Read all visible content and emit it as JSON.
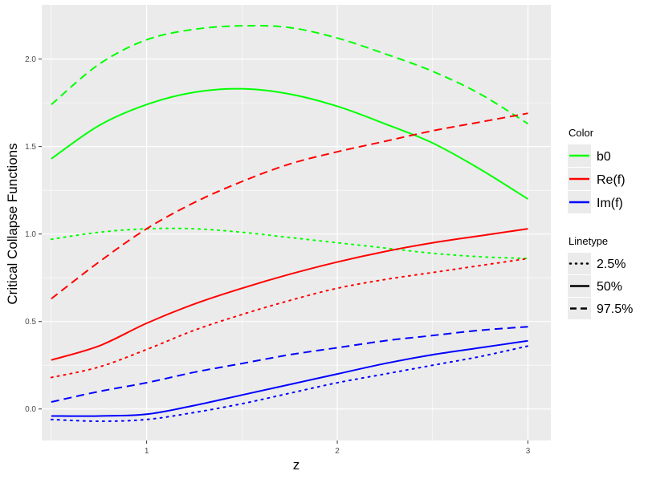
{
  "chart_data": {
    "type": "line",
    "xlabel": "z",
    "ylabel": "Critical Collapse Functions",
    "xlim": [
      0.45,
      3.12
    ],
    "ylim": [
      -0.18,
      2.31
    ],
    "x_ticks": [
      1,
      2,
      3
    ],
    "x_tick_labels": [
      "1",
      "2",
      "3"
    ],
    "y_ticks": [
      0.0,
      0.5,
      1.0,
      1.5,
      2.0
    ],
    "y_tick_labels": [
      "0.0",
      "0.5",
      "1.0",
      "1.5",
      "2.0"
    ],
    "grid": true,
    "legend_placement": "right",
    "colors": {
      "b0": "#00ff00",
      "Re(f)": "#ff0000",
      "Im(f)": "#0000ff",
      "panel": "#ebebeb",
      "grid": "#ffffff"
    },
    "legends": {
      "color": {
        "title": "Color",
        "entries": [
          {
            "label": "b0",
            "color": "#00ff00"
          },
          {
            "label": "Re(f)",
            "color": "#ff0000"
          },
          {
            "label": "Im(f)",
            "color": "#0000ff"
          }
        ]
      },
      "linetype": {
        "title": "Linetype",
        "entries": [
          {
            "label": "2.5%",
            "dash": "dotted"
          },
          {
            "label": "50%",
            "dash": "solid"
          },
          {
            "label": "97.5%",
            "dash": "dashed"
          }
        ]
      }
    },
    "x": [
      0.5,
      0.75,
      1.0,
      1.25,
      1.5,
      1.75,
      2.0,
      2.25,
      2.5,
      2.75,
      3.0
    ],
    "series": [
      {
        "color_key": "b0",
        "linetype": "2.5%",
        "values": [
          0.97,
          1.01,
          1.03,
          1.03,
          1.01,
          0.98,
          0.95,
          0.92,
          0.89,
          0.87,
          0.86
        ]
      },
      {
        "color_key": "b0",
        "linetype": "50%",
        "values": [
          1.43,
          1.62,
          1.74,
          1.81,
          1.83,
          1.8,
          1.73,
          1.63,
          1.52,
          1.37,
          1.2
        ]
      },
      {
        "color_key": "b0",
        "linetype": "97.5%",
        "values": [
          1.74,
          1.97,
          2.11,
          2.17,
          2.19,
          2.18,
          2.12,
          2.03,
          1.93,
          1.8,
          1.63
        ]
      },
      {
        "color_key": "Re(f)",
        "linetype": "2.5%",
        "values": [
          0.18,
          0.24,
          0.34,
          0.45,
          0.54,
          0.62,
          0.69,
          0.74,
          0.78,
          0.82,
          0.86
        ]
      },
      {
        "color_key": "Re(f)",
        "linetype": "50%",
        "values": [
          0.28,
          0.36,
          0.49,
          0.6,
          0.69,
          0.77,
          0.84,
          0.9,
          0.95,
          0.99,
          1.03
        ]
      },
      {
        "color_key": "Re(f)",
        "linetype": "97.5%",
        "values": [
          0.63,
          0.84,
          1.03,
          1.18,
          1.3,
          1.4,
          1.47,
          1.53,
          1.59,
          1.64,
          1.69
        ]
      },
      {
        "color_key": "Im(f)",
        "linetype": "2.5%",
        "values": [
          -0.06,
          -0.07,
          -0.06,
          -0.02,
          0.03,
          0.09,
          0.15,
          0.2,
          0.25,
          0.3,
          0.36
        ]
      },
      {
        "color_key": "Im(f)",
        "linetype": "50%",
        "values": [
          -0.04,
          -0.04,
          -0.03,
          0.02,
          0.08,
          0.14,
          0.2,
          0.26,
          0.31,
          0.35,
          0.39
        ]
      },
      {
        "color_key": "Im(f)",
        "linetype": "97.5%",
        "values": [
          0.04,
          0.1,
          0.15,
          0.21,
          0.26,
          0.31,
          0.35,
          0.39,
          0.42,
          0.45,
          0.47
        ]
      }
    ]
  }
}
